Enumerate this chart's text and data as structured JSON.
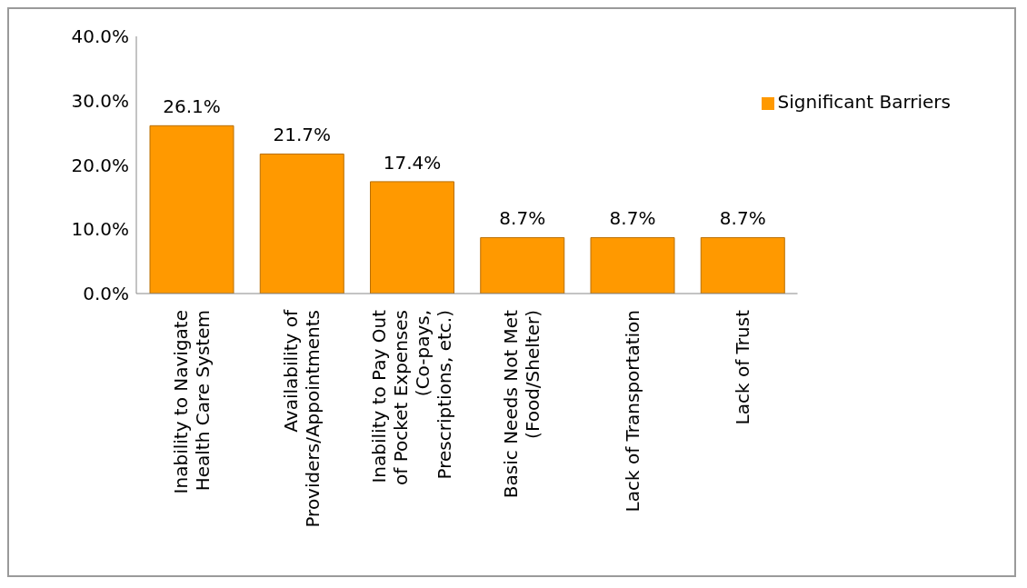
{
  "chart_data": {
    "type": "bar",
    "categories": [
      "Inability to Navigate Health Care System",
      "Availability of Providers/Appointments",
      "Inability to Pay Out of Pocket Expenses (Co-pays, Prescriptions, etc.)",
      "Basic Needs Not Met (Food/Shelter)",
      "Lack of Transportation",
      "Lack of Trust"
    ],
    "series": [
      {
        "name": "Significant Barriers",
        "color": "#ff9900",
        "values": [
          26.1,
          21.7,
          17.4,
          8.7,
          8.7,
          8.7
        ],
        "value_labels": [
          "26.1%",
          "21.7%",
          "17.4%",
          "8.7%",
          "8.7%",
          "8.7%"
        ]
      }
    ],
    "ylim": [
      0,
      40
    ],
    "yticks": [
      {
        "value": 0,
        "label": "0.0%"
      },
      {
        "value": 10,
        "label": "10.0%"
      },
      {
        "value": 20,
        "label": "20.0%"
      },
      {
        "value": 30,
        "label": "30.0%"
      },
      {
        "value": 40,
        "label": "40.0%"
      }
    ],
    "grid": false,
    "legend": "top right"
  }
}
